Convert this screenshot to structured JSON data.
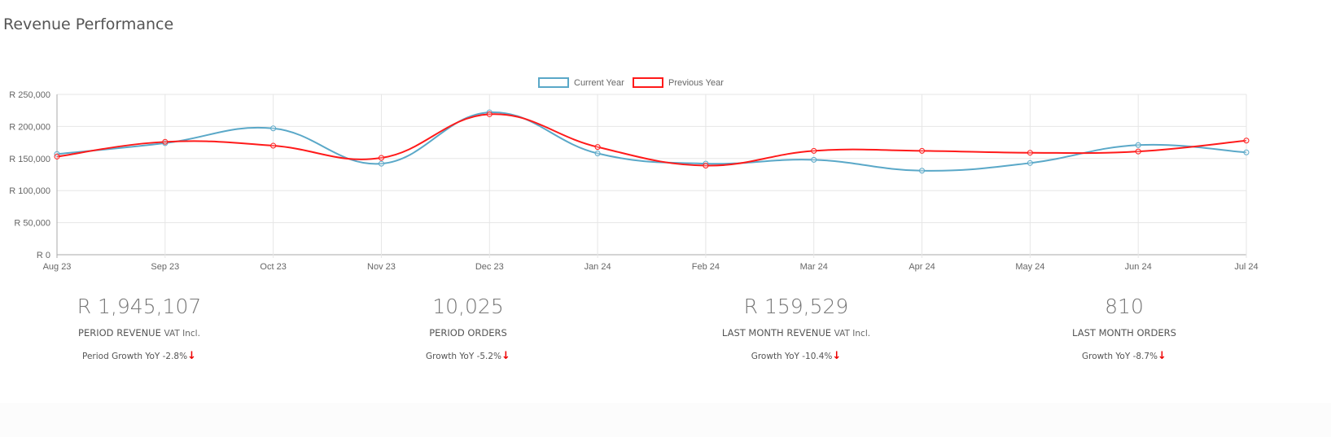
{
  "header": {
    "title": "Revenue Performance"
  },
  "chart_data": {
    "type": "line",
    "title": "",
    "categories": [
      "Aug 23",
      "Sep 23",
      "Oct 23",
      "Nov 23",
      "Dec 23",
      "Jan 24",
      "Feb 24",
      "Mar 24",
      "Apr 24",
      "May 24",
      "Jun 24",
      "Jul 24"
    ],
    "series": [
      {
        "name": "Current Year",
        "color": "#5aa8c8",
        "values": [
          157000,
          174000,
          197000,
          142000,
          222000,
          158000,
          142000,
          148000,
          131000,
          143000,
          171000,
          159529
        ]
      },
      {
        "name": "Previous Year",
        "color": "#ff1a1a",
        "values": [
          153000,
          176000,
          170000,
          151000,
          219000,
          168000,
          139000,
          162000,
          162000,
          159000,
          161000,
          178000
        ]
      }
    ],
    "yticks": [
      "R 0",
      "R 50,000",
      "R 100,000",
      "R 150,000",
      "R 200,000",
      "R 250,000"
    ],
    "ylim": [
      0,
      250000
    ],
    "grid": true,
    "legend": "top-center"
  },
  "stats": [
    {
      "value": "R 1,945,107",
      "label": "PERIOD REVENUE",
      "suffix": "VAT Incl.",
      "growth": "Period Growth YoY -2.8%",
      "arrow": "↓"
    },
    {
      "value": "10,025",
      "label": "PERIOD ORDERS",
      "suffix": "",
      "growth": "Growth YoY -5.2%",
      "arrow": "↓"
    },
    {
      "value": "R 159,529",
      "label": "LAST MONTH REVENUE",
      "suffix": "VAT Incl.",
      "growth": "Growth YoY -10.4%",
      "arrow": "↓"
    },
    {
      "value": "810",
      "label": "LAST MONTH ORDERS",
      "suffix": "",
      "growth": "Growth YoY -8.7%",
      "arrow": "↓"
    }
  ]
}
